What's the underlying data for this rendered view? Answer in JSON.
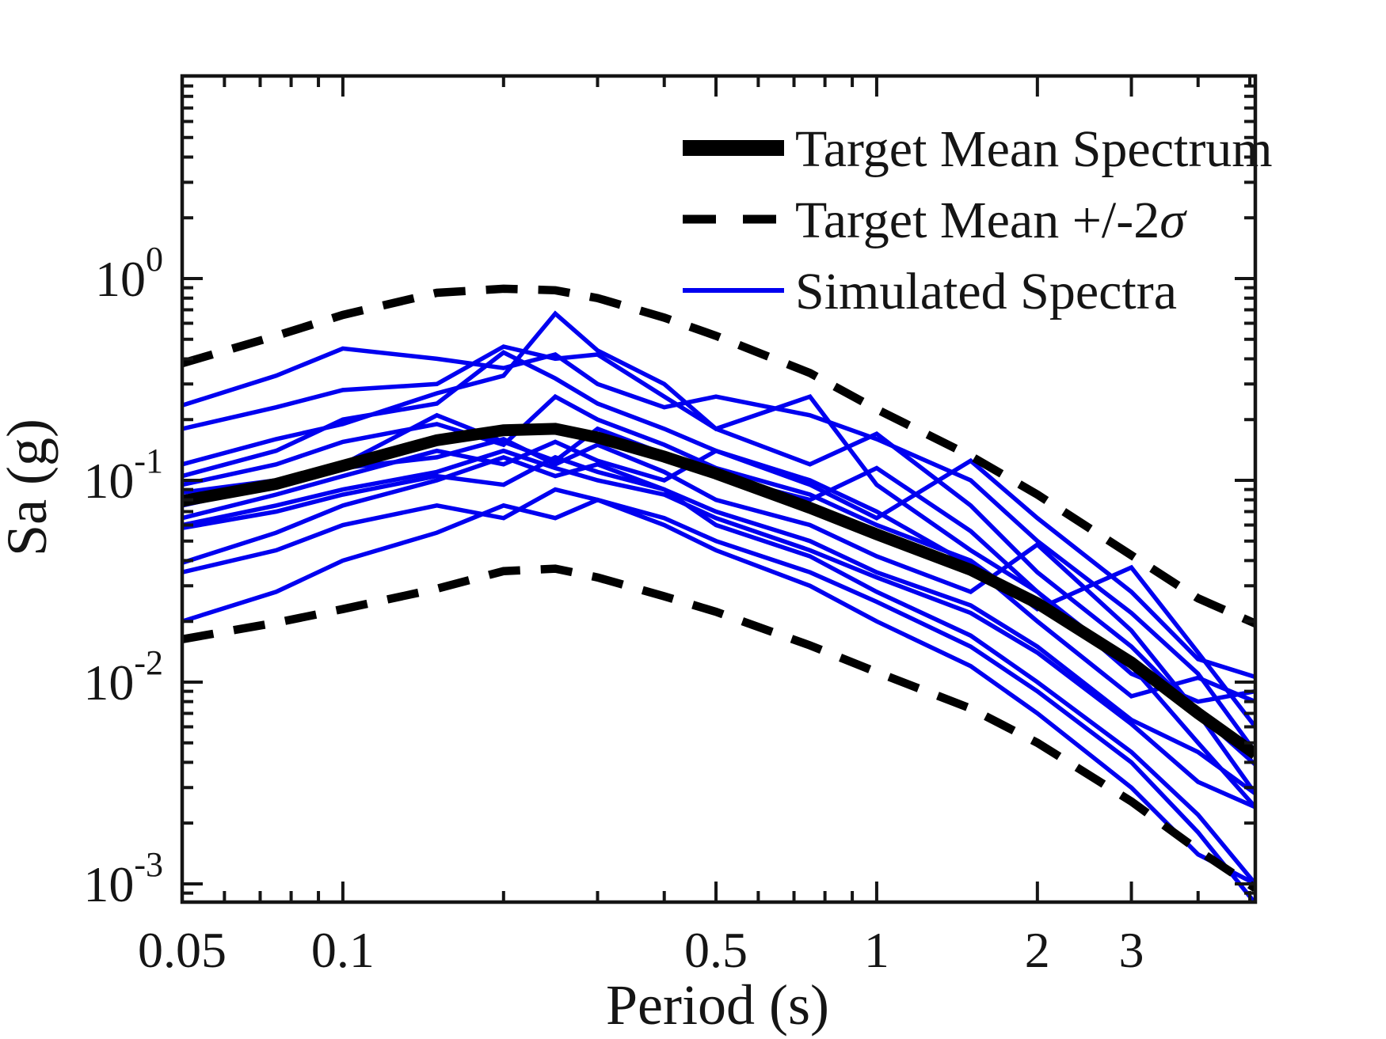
{
  "figure": {
    "background": "#ffffff"
  },
  "colors": {
    "target_black": "#000000",
    "simulated_blue": "#0000F0",
    "axis": "#151515"
  },
  "legend": {
    "items": [
      {
        "label": "Target Mean Spectrum",
        "italic_suffix": "",
        "style": "solid-black-thick"
      },
      {
        "label": "Target Mean +/-2",
        "italic_suffix": "σ",
        "style": "dashed-black"
      },
      {
        "label": "Simulated Spectra",
        "italic_suffix": "",
        "style": "solid-blue"
      }
    ]
  },
  "chart_data": {
    "type": "line",
    "title": "",
    "xlabel": "Period (s)",
    "ylabel": "Sa (g)",
    "x_scale": "log",
    "y_scale": "log",
    "xlim": [
      0.05,
      5.12
    ],
    "ylim": [
      0.000812,
      10.09
    ],
    "grid": false,
    "legend_position": "top-right",
    "x_ticks": [
      {
        "value": 0.05,
        "label": "0.05"
      },
      {
        "value": 0.1,
        "label": "0.1"
      },
      {
        "value": 0.5,
        "label": "0.5"
      },
      {
        "value": 1,
        "label": "1"
      },
      {
        "value": 2,
        "label": "2"
      },
      {
        "value": 3,
        "label": "3"
      }
    ],
    "x_minor_ticks": [
      0.06,
      0.07,
      0.08,
      0.09,
      0.2,
      0.3,
      0.4,
      0.6,
      0.7,
      0.8,
      0.9,
      4,
      5
    ],
    "y_ticks": [
      {
        "value": 1,
        "base": "10",
        "exp": "0"
      },
      {
        "value": 0.1,
        "base": "10",
        "exp": "-1"
      },
      {
        "value": 0.01,
        "base": "10",
        "exp": "-2"
      },
      {
        "value": 0.001,
        "base": "10",
        "exp": "-3"
      }
    ],
    "y_minor_ticks": [
      0.0009,
      0.002,
      0.003,
      0.004,
      0.005,
      0.006,
      0.007,
      0.008,
      0.009,
      0.02,
      0.03,
      0.04,
      0.05,
      0.06,
      0.07,
      0.08,
      0.09,
      0.2,
      0.3,
      0.4,
      0.5,
      0.6,
      0.7,
      0.8,
      0.9,
      2,
      3,
      4,
      5,
      6,
      7,
      8,
      9
    ],
    "periods": [
      0.05,
      0.075,
      0.1,
      0.15,
      0.2,
      0.25,
      0.3,
      0.4,
      0.5,
      0.75,
      1,
      1.5,
      2,
      3,
      4,
      5.12
    ],
    "series": [
      {
        "name": "Target Mean Spectrum",
        "role": "target-mean",
        "values": [
          0.079,
          0.096,
          0.118,
          0.158,
          0.177,
          0.18,
          0.163,
          0.131,
          0.108,
          0.073,
          0.054,
          0.036,
          0.0246,
          0.0125,
          0.007,
          0.0044
        ]
      },
      {
        "name": "Target Mean +2sigma",
        "role": "target-upper",
        "values": [
          0.38,
          0.52,
          0.66,
          0.85,
          0.89,
          0.875,
          0.8,
          0.64,
          0.52,
          0.34,
          0.225,
          0.132,
          0.085,
          0.0425,
          0.026,
          0.0195
        ]
      },
      {
        "name": "Target Mean -2sigma",
        "role": "target-lower",
        "values": [
          0.0163,
          0.0197,
          0.023,
          0.029,
          0.0355,
          0.0365,
          0.033,
          0.0266,
          0.0223,
          0.0152,
          0.0112,
          0.0074,
          0.005,
          0.00256,
          0.00147,
          0.00095
        ]
      },
      {
        "name": "Simulated Spectrum 1",
        "role": "simulated",
        "values": [
          0.235,
          0.33,
          0.45,
          0.4,
          0.36,
          0.42,
          0.3,
          0.23,
          0.26,
          0.21,
          0.16,
          0.1,
          0.05,
          0.022,
          0.011,
          0.0045
        ]
      },
      {
        "name": "Simulated Spectrum 2",
        "role": "simulated",
        "values": [
          0.18,
          0.23,
          0.28,
          0.3,
          0.46,
          0.4,
          0.42,
          0.26,
          0.18,
          0.12,
          0.17,
          0.075,
          0.035,
          0.015,
          0.007,
          0.0028
        ]
      },
      {
        "name": "Simulated Spectrum 3",
        "role": "simulated",
        "values": [
          0.12,
          0.16,
          0.19,
          0.27,
          0.33,
          0.67,
          0.44,
          0.3,
          0.18,
          0.26,
          0.095,
          0.045,
          0.028,
          0.012,
          0.005,
          0.0024
        ]
      },
      {
        "name": "Simulated Spectrum 4",
        "role": "simulated",
        "values": [
          0.105,
          0.14,
          0.2,
          0.24,
          0.43,
          0.32,
          0.24,
          0.18,
          0.14,
          0.095,
          0.065,
          0.125,
          0.065,
          0.028,
          0.013,
          0.0106
        ]
      },
      {
        "name": "Simulated Spectrum 5",
        "role": "simulated",
        "values": [
          0.095,
          0.12,
          0.155,
          0.19,
          0.15,
          0.26,
          0.2,
          0.15,
          0.115,
          0.085,
          0.06,
          0.04,
          0.023,
          0.037,
          0.014,
          0.006
        ]
      },
      {
        "name": "Simulated Spectrum 6",
        "role": "simulated",
        "values": [
          0.087,
          0.1,
          0.12,
          0.21,
          0.155,
          0.125,
          0.18,
          0.135,
          0.105,
          0.08,
          0.115,
          0.056,
          0.028,
          0.011,
          0.008,
          0.009
        ]
      },
      {
        "name": "Simulated Spectrum 7",
        "role": "simulated",
        "values": [
          0.075,
          0.095,
          0.115,
          0.13,
          0.16,
          0.12,
          0.15,
          0.11,
          0.08,
          0.06,
          0.042,
          0.028,
          0.048,
          0.018,
          0.007,
          0.0039
        ]
      },
      {
        "name": "Simulated Spectrum 8",
        "role": "simulated",
        "values": [
          0.065,
          0.085,
          0.105,
          0.14,
          0.12,
          0.155,
          0.125,
          0.1,
          0.14,
          0.1,
          0.07,
          0.038,
          0.02,
          0.0085,
          0.0105,
          0.008
        ]
      },
      {
        "name": "Simulated Spectrum 9",
        "role": "simulated",
        "values": [
          0.06,
          0.075,
          0.09,
          0.11,
          0.14,
          0.115,
          0.1,
          0.085,
          0.065,
          0.045,
          0.033,
          0.022,
          0.014,
          0.0062,
          0.0032,
          0.0024
        ]
      },
      {
        "name": "Simulated Spectrum 10",
        "role": "simulated",
        "values": [
          0.039,
          0.055,
          0.075,
          0.1,
          0.13,
          0.105,
          0.12,
          0.09,
          0.06,
          0.042,
          0.028,
          0.017,
          0.01,
          0.0045,
          0.0022,
          0.001
        ]
      },
      {
        "name": "Simulated Spectrum 11",
        "role": "simulated",
        "values": [
          0.035,
          0.045,
          0.06,
          0.075,
          0.065,
          0.09,
          0.08,
          0.065,
          0.05,
          0.035,
          0.025,
          0.015,
          0.009,
          0.004,
          0.0018,
          0.0008
        ]
      },
      {
        "name": "Simulated Spectrum 12",
        "role": "simulated",
        "values": [
          0.02,
          0.028,
          0.04,
          0.055,
          0.075,
          0.065,
          0.08,
          0.06,
          0.045,
          0.03,
          0.02,
          0.012,
          0.007,
          0.003,
          0.0014,
          0.001
        ]
      },
      {
        "name": "Simulated Spectrum 13",
        "role": "simulated",
        "values": [
          0.058,
          0.07,
          0.085,
          0.105,
          0.095,
          0.13,
          0.11,
          0.09,
          0.07,
          0.05,
          0.035,
          0.024,
          0.015,
          0.0065,
          0.0045,
          0.0028
        ]
      }
    ]
  }
}
